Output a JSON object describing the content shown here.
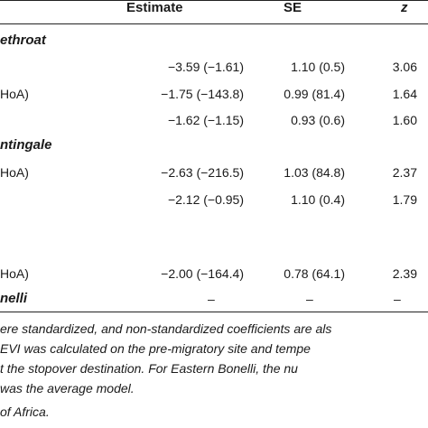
{
  "headers": {
    "estimate": "Estimate",
    "se": "SE",
    "z": "z"
  },
  "rows": [
    {
      "label": "ethroat",
      "type": "species"
    },
    {
      "label": "",
      "estimate": "−3.59 (−1.61)",
      "se": "1.10 (0.5)",
      "z": "3.06"
    },
    {
      "label": "HoA)",
      "estimate": "−1.75 (−143.8)",
      "se": "0.99 (81.4)",
      "z": "1.64"
    },
    {
      "label": "",
      "estimate": "−1.62 (−1.15)",
      "se": "0.93 (0.6)",
      "z": "1.60"
    },
    {
      "label": "ntingale",
      "type": "species"
    },
    {
      "label": "HoA)",
      "estimate": "−2.63 (−216.5)",
      "se": "1.03 (84.8)",
      "z": "2.37"
    },
    {
      "label": "",
      "estimate": "−2.12 (−0.95)",
      "se": "1.10 (0.4)",
      "z": "1.79"
    },
    {
      "label": "HoA)",
      "estimate": "−2.00 (−164.4)",
      "se": "0.78 (64.1)",
      "z": "2.39"
    },
    {
      "label": "nelli",
      "type": "species",
      "estimate": "–",
      "se": "–",
      "z": "–"
    }
  ],
  "notes": [
    "ere standardized, and non-standardized coefficients are als",
    " EVI was calculated on the pre-migratory site and tempe",
    "t the stopover destination. For Eastern Bonelli, the nu",
    "was the average model.",
    "of Africa."
  ]
}
